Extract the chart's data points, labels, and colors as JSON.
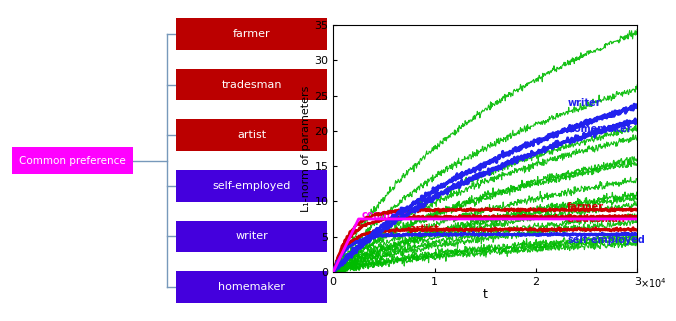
{
  "left_panel": {
    "common_label": "Common preference",
    "common_color": "#FF00FF",
    "categories": [
      "farmer",
      "tradesman",
      "artist",
      "self-employed",
      "writer",
      "homemaker"
    ],
    "cat_colors": [
      "#BB0000",
      "#BB0000",
      "#BB0000",
      "#4400DD",
      "#4400DD",
      "#4400DD"
    ],
    "text_color": "#FFFFFF"
  },
  "right_panel": {
    "ylabel": "L₁-norm of parameters",
    "xlabel": "t",
    "xlim": [
      0,
      30000
    ],
    "ylim": [
      0,
      35
    ],
    "xticks": [
      0,
      10000,
      20000,
      30000
    ],
    "yticks": [
      0,
      5,
      10,
      15,
      20,
      25,
      30,
      35
    ],
    "common_final": 7.5,
    "farmer_final": 8.8,
    "tradesman_final": 7.8,
    "artist_final": 6.0,
    "self_employed_final": 5.3,
    "writer_final": 23.5,
    "homemaker_final": 21.5,
    "green_finals": [
      34,
      26,
      20.5,
      19,
      16,
      15.5,
      13,
      11,
      10.5,
      9.5,
      8,
      7,
      5,
      4.5,
      4
    ]
  }
}
